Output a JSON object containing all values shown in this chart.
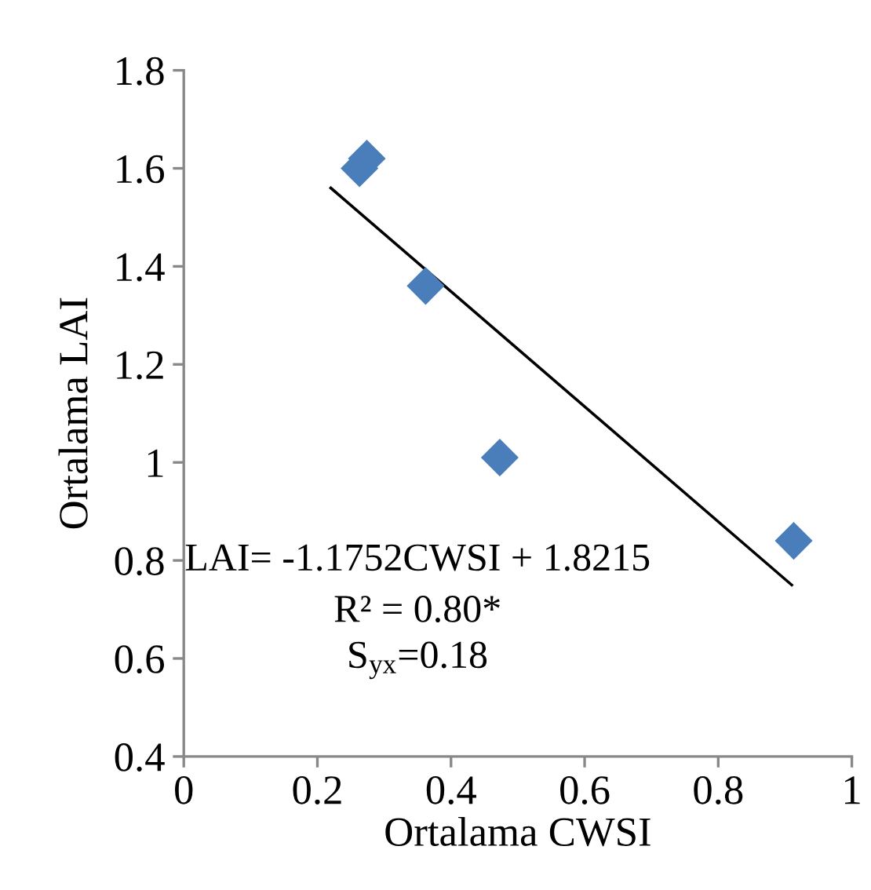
{
  "chart_data": {
    "type": "scatter",
    "xlabel": "Ortalama CWSI",
    "ylabel": "Ortalama LAI",
    "series": [
      {
        "color": "#4a7ebb",
        "marker": "diamond",
        "x": [
          0.263,
          0.274,
          0.362,
          0.473,
          0.913
        ],
        "values": [
          1.6,
          1.62,
          1.36,
          1.01,
          0.84
        ]
      },
      {
        "type": "line",
        "color": "#000000",
        "marker": "none",
        "line_style": "solid",
        "x": [
          0.22,
          0.91
        ],
        "values": [
          1.56,
          0.75
        ]
      }
    ],
    "annotations": [
      "LAI= -1.1752CWSI + 1.8215",
      "R² = 0.80*",
      "S$_{yx}$=0.18"
    ],
    "xlim": [
      0,
      1
    ],
    "xticks": [
      0,
      0.2,
      0.4,
      0.6,
      0.8,
      1
    ],
    "ylim": [
      0.4,
      1.8
    ],
    "yticks": [
      0.4,
      0.6,
      0.8,
      1,
      1.2,
      1.4,
      1.6,
      1.8
    ],
    "grid": false
  }
}
